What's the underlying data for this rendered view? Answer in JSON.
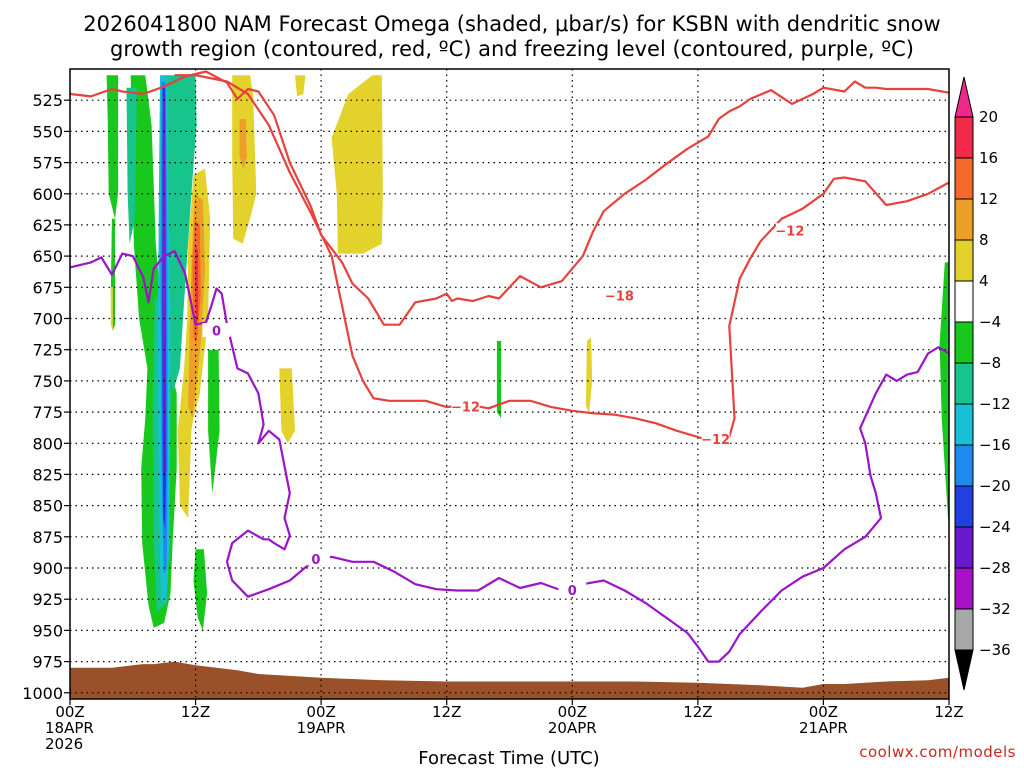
{
  "chart_data": {
    "type": "heatmap",
    "title_lines": [
      "2026041800 NAM Forecast Omega (shaded, μbar/s) for KSBN with dendritic snow",
      "growth region (contoured, red, ºC) and freezing level (contoured, purple, ºC)"
    ],
    "xlabel": "Forecast Time (UTC)",
    "x_hours": [
      0,
      12,
      24,
      36,
      48,
      60,
      72,
      84
    ],
    "x_tick_labels": [
      [
        "00Z",
        "18APR",
        "2026"
      ],
      [
        "12Z"
      ],
      [
        "00Z",
        "19APR"
      ],
      [
        "12Z"
      ],
      [
        "00Z",
        "20APR"
      ],
      [
        "12Z"
      ],
      [
        "00Z",
        "21APR"
      ],
      [
        "12Z"
      ]
    ],
    "xlim_hours": [
      0,
      84
    ],
    "y_levels_hpa": [
      525,
      550,
      575,
      600,
      625,
      650,
      675,
      700,
      725,
      750,
      775,
      800,
      825,
      850,
      875,
      900,
      925,
      950,
      975,
      1000
    ],
    "ylim_hpa": [
      500,
      1005
    ],
    "colorbar": {
      "labels": [
        "20",
        "16",
        "12",
        "8",
        "4",
        "−4",
        "−8",
        "−12",
        "−16",
        "−20",
        "−24",
        "−28",
        "−32",
        "−36"
      ],
      "bins": [
        {
          "range": [
            16,
            20
          ],
          "color": "#f02a48"
        },
        {
          "range": [
            12,
            16
          ],
          "color": "#f46a2a"
        },
        {
          "range": [
            8,
            12
          ],
          "color": "#eda028"
        },
        {
          "range": [
            4,
            8
          ],
          "color": "#e4d22c"
        },
        {
          "range": [
            -4,
            4
          ],
          "color": "#ffffff"
        },
        {
          "range": [
            -8,
            -4
          ],
          "color": "#18c81c"
        },
        {
          "range": [
            -12,
            -8
          ],
          "color": "#16c48c"
        },
        {
          "range": [
            -16,
            -12
          ],
          "color": "#18c0d6"
        },
        {
          "range": [
            -20,
            -16
          ],
          "color": "#1e8af0"
        },
        {
          "range": [
            -24,
            -20
          ],
          "color": "#2040e2"
        },
        {
          "range": [
            -28,
            -24
          ],
          "color": "#6a18cc"
        },
        {
          "range": [
            -32,
            -28
          ],
          "color": "#a810c8"
        },
        {
          "range": [
            -36,
            -32
          ],
          "color": "#a8a8a8"
        }
      ],
      "top_arrow_color": "#f0288a",
      "bottom_arrow_color": "#000000"
    },
    "omega_features": [
      {
        "name": "omega-column-neg",
        "hour_range": [
          5,
          13
        ],
        "p_range": [
          505,
          950
        ],
        "min_value": -32
      },
      {
        "name": "omega-column-pos",
        "hour_range": [
          9.5,
          14
        ],
        "p_range": [
          580,
          860
        ],
        "max_value": 20
      },
      {
        "name": "omega-upper-pos",
        "hour_range": [
          14,
          22
        ],
        "p_range": [
          505,
          760
        ],
        "max_value": 8
      },
      {
        "name": "omega-late-neg",
        "hour_range": [
          83,
          84
        ],
        "p_range": [
          660,
          880
        ],
        "min_value": -8
      }
    ],
    "contours": [
      {
        "name": "dgz-upper",
        "type": "red",
        "label": "-18",
        "hours": [
          0,
          2,
          4,
          5,
          7,
          9,
          11,
          13,
          15,
          16,
          17,
          18,
          19.5,
          21,
          23,
          24,
          26,
          27,
          28.5,
          30,
          31.5,
          33,
          35,
          36,
          36.5,
          37,
          38.5,
          40,
          41,
          43,
          45,
          47,
          49,
          50,
          51,
          53,
          55,
          57,
          59,
          61,
          62,
          63,
          64,
          65,
          67,
          69,
          71,
          72,
          74,
          75,
          76,
          77,
          78,
          80,
          82,
          84
        ],
        "p": [
          520,
          522,
          516,
          518,
          520,
          514,
          506,
          502,
          511,
          524,
          516,
          518,
          537,
          575,
          610,
          633,
          655,
          672,
          684,
          705,
          705,
          687,
          684,
          680,
          686,
          684,
          686,
          682,
          684,
          666,
          675,
          670,
          650,
          630,
          614,
          600,
          589,
          576,
          564,
          554,
          540,
          534,
          530,
          524,
          517,
          528,
          520,
          515,
          518,
          510,
          515,
          515,
          516,
          516,
          516,
          519
        ]
      },
      {
        "name": "dgz-lower",
        "type": "red",
        "label": "-12",
        "hours": [
          10,
          12,
          15,
          17,
          19,
          21,
          23,
          25,
          26,
          27,
          28,
          29,
          30.5,
          32,
          34,
          36,
          38,
          40,
          42,
          44,
          46,
          48,
          50,
          52,
          54,
          56,
          58,
          60,
          62,
          63,
          63.5,
          63,
          64,
          65,
          66,
          68,
          70,
          72,
          73,
          74,
          76,
          78,
          80,
          82,
          84
        ],
        "p": [
          505,
          505,
          510,
          520,
          545,
          583,
          615,
          650,
          690,
          730,
          750,
          764,
          766,
          766,
          766,
          771,
          769,
          772,
          766,
          766,
          771,
          774,
          776,
          777,
          780,
          784,
          790,
          795,
          800,
          795,
          780,
          706,
          668,
          652,
          638,
          620,
          612,
          600,
          588,
          587,
          590,
          609,
          606,
          600,
          591
        ]
      },
      {
        "name": "freezing-level",
        "type": "purple",
        "label": "0",
        "hours": [
          0,
          2,
          3,
          4,
          5,
          6,
          7,
          7.5,
          8,
          9,
          10,
          11,
          12,
          13,
          13.5,
          14,
          14.5,
          15,
          16,
          17,
          18,
          18.5,
          18,
          19,
          20,
          21,
          20.5,
          21,
          20.5,
          19.5,
          19,
          18.5,
          17,
          15.5,
          15,
          15.5,
          17,
          19,
          21,
          23,
          25,
          27,
          29,
          31,
          33,
          35,
          37,
          39,
          41,
          43,
          45,
          47,
          49,
          51,
          53,
          55,
          57,
          59,
          60,
          61,
          62,
          63,
          64,
          66,
          68,
          70,
          72,
          74,
          76,
          77.5,
          77,
          76.5,
          76,
          75.5,
          77,
          78,
          79,
          80,
          81,
          82,
          83,
          84
        ],
        "p": [
          659,
          655,
          651,
          665,
          648,
          650,
          667,
          687,
          660,
          650,
          646,
          664,
          705,
          703,
          690,
          676,
          680,
          705,
          740,
          744,
          760,
          785,
          800,
          790,
          797,
          840,
          860,
          874,
          885,
          880,
          877,
          877,
          870,
          880,
          895,
          910,
          923,
          917,
          910,
          896,
          891,
          895,
          895,
          903,
          913,
          917,
          918,
          918,
          908,
          916,
          912,
          918,
          913,
          910,
          918,
          928,
          940,
          952,
          963,
          975,
          975,
          967,
          953,
          935,
          918,
          907,
          900,
          885,
          875,
          860,
          840,
          826,
          800,
          788,
          760,
          745,
          750,
          745,
          743,
          728,
          723,
          728
        ]
      }
    ],
    "terrain": {
      "color": "#9a5028",
      "hours": [
        0,
        2,
        4,
        6,
        7,
        8,
        10,
        12,
        14,
        16,
        18,
        20,
        24,
        30,
        36,
        42,
        48,
        54,
        60,
        66,
        70,
        72,
        74,
        78,
        82,
        84
      ],
      "p": [
        980,
        980,
        980,
        978,
        977,
        977,
        975,
        978,
        980,
        982,
        985,
        986,
        988,
        990,
        991,
        991,
        991,
        991,
        992,
        994,
        996,
        993,
        993,
        991,
        990,
        988
      ]
    }
  },
  "credit": "coolwx.com/models"
}
